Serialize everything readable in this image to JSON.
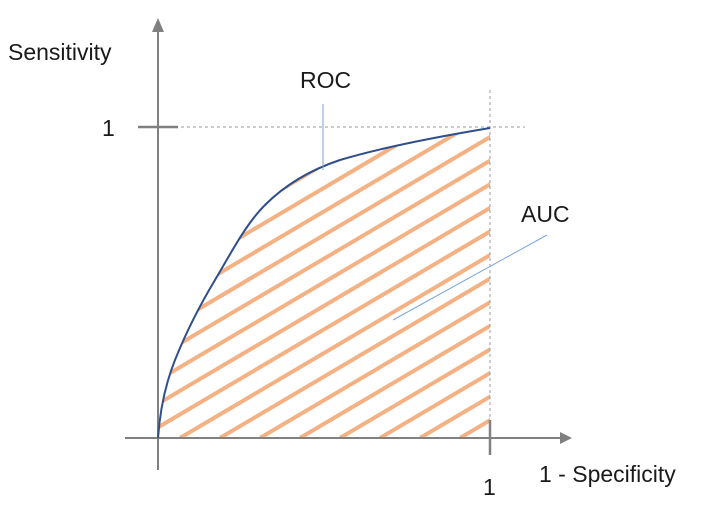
{
  "labels": {
    "y_axis": "Sensitivity",
    "x_axis": "1 - Specificity",
    "y_tick": "1",
    "x_tick": "1",
    "curve": "ROC",
    "area": "AUC"
  },
  "colors": {
    "axis": "#808080",
    "curve": "#2f4f8a",
    "hatch": "#f4b183",
    "guide": "#9a9a9a",
    "leader": "#7aa6d8"
  }
}
